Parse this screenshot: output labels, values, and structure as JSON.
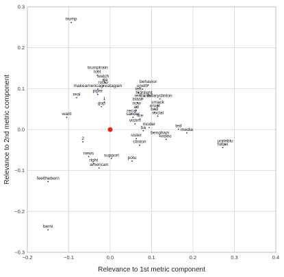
{
  "chart_data": {
    "type": "scatter",
    "xlabel": "Relevance to 1st metric component",
    "ylabel": "Relevance to 2nd metric component",
    "xlim": [
      -0.2,
      0.4
    ],
    "ylim": [
      -0.3,
      0.3
    ],
    "x_ticks": [
      "−0.2",
      "−0.1",
      "0.0",
      "0.1",
      "0.2",
      "0.3",
      "0.4"
    ],
    "y_ticks": [
      "−0.3",
      "−0.2",
      "−0.1",
      "0.0",
      "0.1",
      "0.2",
      "0.3"
    ],
    "x_tick_values": [
      -0.2,
      -0.1,
      0.0,
      0.1,
      0.2,
      0.3,
      0.4
    ],
    "y_tick_values": [
      -0.3,
      -0.2,
      -0.1,
      0.0,
      0.1,
      0.2,
      0.3
    ],
    "grid": true,
    "point_color": "#1f1f8f",
    "origin_color": "#e8221c",
    "origin": {
      "x": 0.0,
      "y": 0.0
    },
    "points": [
      {
        "label": "trump",
        "x": -0.094,
        "y": 0.267
      },
      {
        "label": "trumptrain",
        "x": -0.03,
        "y": 0.148
      },
      {
        "label": "tcot",
        "x": -0.031,
        "y": 0.138
      },
      {
        "label": "watch",
        "x": -0.017,
        "y": 0.127
      },
      {
        "label": "ija",
        "x": -0.012,
        "y": 0.119
      },
      {
        "label": "rubio",
        "x": -0.017,
        "y": 0.112
      },
      {
        "label": "makeamericagreatagain",
        "x": -0.03,
        "y": 0.104
      },
      {
        "label": "piper",
        "x": -0.03,
        "y": 0.091
      },
      {
        "label": "real",
        "x": -0.081,
        "y": 0.083
      },
      {
        "label": "1",
        "x": -0.014,
        "y": 0.072
      },
      {
        "label": "gop",
        "x": -0.021,
        "y": 0.061
      },
      {
        "label": "want",
        "x": -0.105,
        "y": 0.035
      },
      {
        "label": "behavior",
        "x": 0.092,
        "y": 0.114
      },
      {
        "label": "uneth",
        "x": 0.078,
        "y": 0.104
      },
      {
        "label": "left",
        "x": 0.068,
        "y": 0.096
      },
      {
        "label": "highlight",
        "x": 0.082,
        "y": 0.087
      },
      {
        "label": "reaction",
        "x": 0.078,
        "y": 0.08
      },
      {
        "label": "hillaryclinton",
        "x": 0.12,
        "y": 0.08
      },
      {
        "label": "blast",
        "x": 0.066,
        "y": 0.071
      },
      {
        "label": "smack",
        "x": 0.115,
        "y": 0.064
      },
      {
        "label": "now",
        "x": 0.064,
        "y": 0.061
      },
      {
        "label": "erupt",
        "x": 0.108,
        "y": 0.055
      },
      {
        "label": "ad",
        "x": 0.063,
        "y": 0.052
      },
      {
        "label": "bad",
        "x": 0.107,
        "y": 0.047
      },
      {
        "label": "recal",
        "x": 0.052,
        "y": 0.043
      },
      {
        "label": "social",
        "x": 0.115,
        "y": 0.038
      },
      {
        "label": "sander",
        "x": 0.055,
        "y": 0.035
      },
      {
        "label": "fire",
        "x": 0.072,
        "y": 0.031
      },
      {
        "label": "victim",
        "x": 0.06,
        "y": 0.019
      },
      {
        "label": "moder",
        "x": 0.094,
        "y": 0.01
      },
      {
        "label": "ba",
        "x": 0.08,
        "y": 0.002
      },
      {
        "label": "ted",
        "x": 0.165,
        "y": 0.006
      },
      {
        "label": "media",
        "x": 0.185,
        "y": -0.003
      },
      {
        "label": "benghazi",
        "x": 0.12,
        "y": -0.011
      },
      {
        "label": "sister",
        "x": 0.063,
        "y": -0.017
      },
      {
        "label": "video",
        "x": 0.135,
        "y": -0.019
      },
      {
        "label": "clinton",
        "x": 0.071,
        "y": -0.033
      },
      {
        "label": "2",
        "x": -0.066,
        "y": -0.025
      },
      {
        "label": "unitebiu",
        "x": 0.278,
        "y": -0.031
      },
      {
        "label": "hillari",
        "x": 0.272,
        "y": -0.039
      },
      {
        "label": "news",
        "x": -0.052,
        "y": -0.061
      },
      {
        "label": "support",
        "x": 0.003,
        "y": -0.066
      },
      {
        "label": "potu",
        "x": 0.053,
        "y": -0.072
      },
      {
        "label": "right",
        "x": -0.04,
        "y": -0.078
      },
      {
        "label": "american",
        "x": -0.027,
        "y": -0.089
      },
      {
        "label": "feelthebern",
        "x": -0.15,
        "y": -0.122
      },
      {
        "label": "berni",
        "x": -0.15,
        "y": -0.24
      }
    ]
  }
}
